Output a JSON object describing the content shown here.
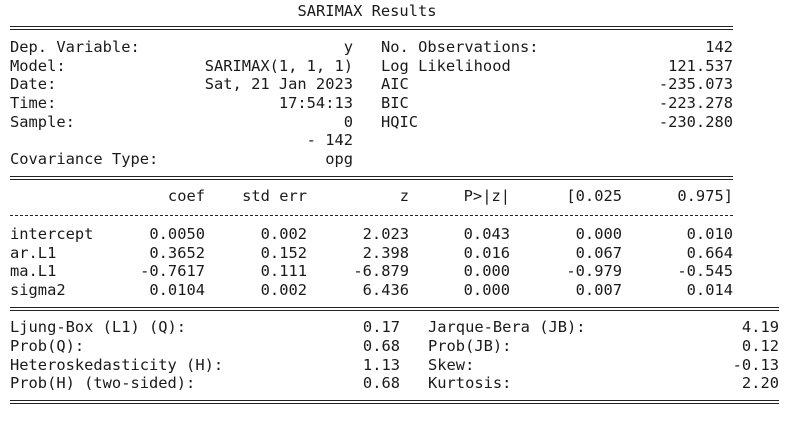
{
  "title": "SARIMAX Results",
  "model_info": {
    "left": [
      {
        "label": "Dep. Variable:",
        "value": "y"
      },
      {
        "label": "Model:",
        "value": "SARIMAX(1, 1, 1)"
      },
      {
        "label": "Date:",
        "value": "Sat, 21 Jan 2023"
      },
      {
        "label": "Time:",
        "value": "17:54:13"
      },
      {
        "label": "Sample:",
        "value": "0"
      },
      {
        "label": null,
        "value": "- 142"
      },
      {
        "label": "Covariance Type:",
        "value": "opg"
      }
    ],
    "right": [
      {
        "label": "No. Observations:",
        "value": "142"
      },
      {
        "label": "Log Likelihood",
        "value": "121.537"
      },
      {
        "label": "AIC",
        "value": "-235.073"
      },
      {
        "label": "BIC",
        "value": "-223.278"
      },
      {
        "label": "HQIC",
        "value": "-230.280"
      }
    ]
  },
  "params": {
    "header": [
      "coef",
      "std err",
      "z",
      "P>|z|",
      "[0.025",
      "0.975]"
    ],
    "rows": [
      [
        "intercept",
        "0.0050",
        "0.002",
        "2.023",
        "0.043",
        "0.000",
        "0.010"
      ],
      [
        "ar.L1",
        "0.3652",
        "0.152",
        "2.398",
        "0.016",
        "0.067",
        "0.664"
      ],
      [
        "ma.L1",
        "-0.7617",
        "0.111",
        "-6.879",
        "0.000",
        "-0.979",
        "-0.545"
      ],
      [
        "sigma2",
        "0.0104",
        "0.002",
        "6.436",
        "0.000",
        "0.007",
        "0.014"
      ]
    ]
  },
  "diagnostics": {
    "rows": [
      [
        "Ljung-Box (L1) (Q):",
        "0.17",
        "Jarque-Bera (JB):",
        "4.19"
      ],
      [
        "Prob(Q):",
        "0.68",
        "Prob(JB):",
        "0.12"
      ],
      [
        "Heteroskedasticity (H):",
        "1.13",
        "Skew:",
        "-0.13"
      ],
      [
        "Prob(H) (two-sided):",
        "0.68",
        "Kurtosis:",
        "2.20"
      ]
    ]
  }
}
